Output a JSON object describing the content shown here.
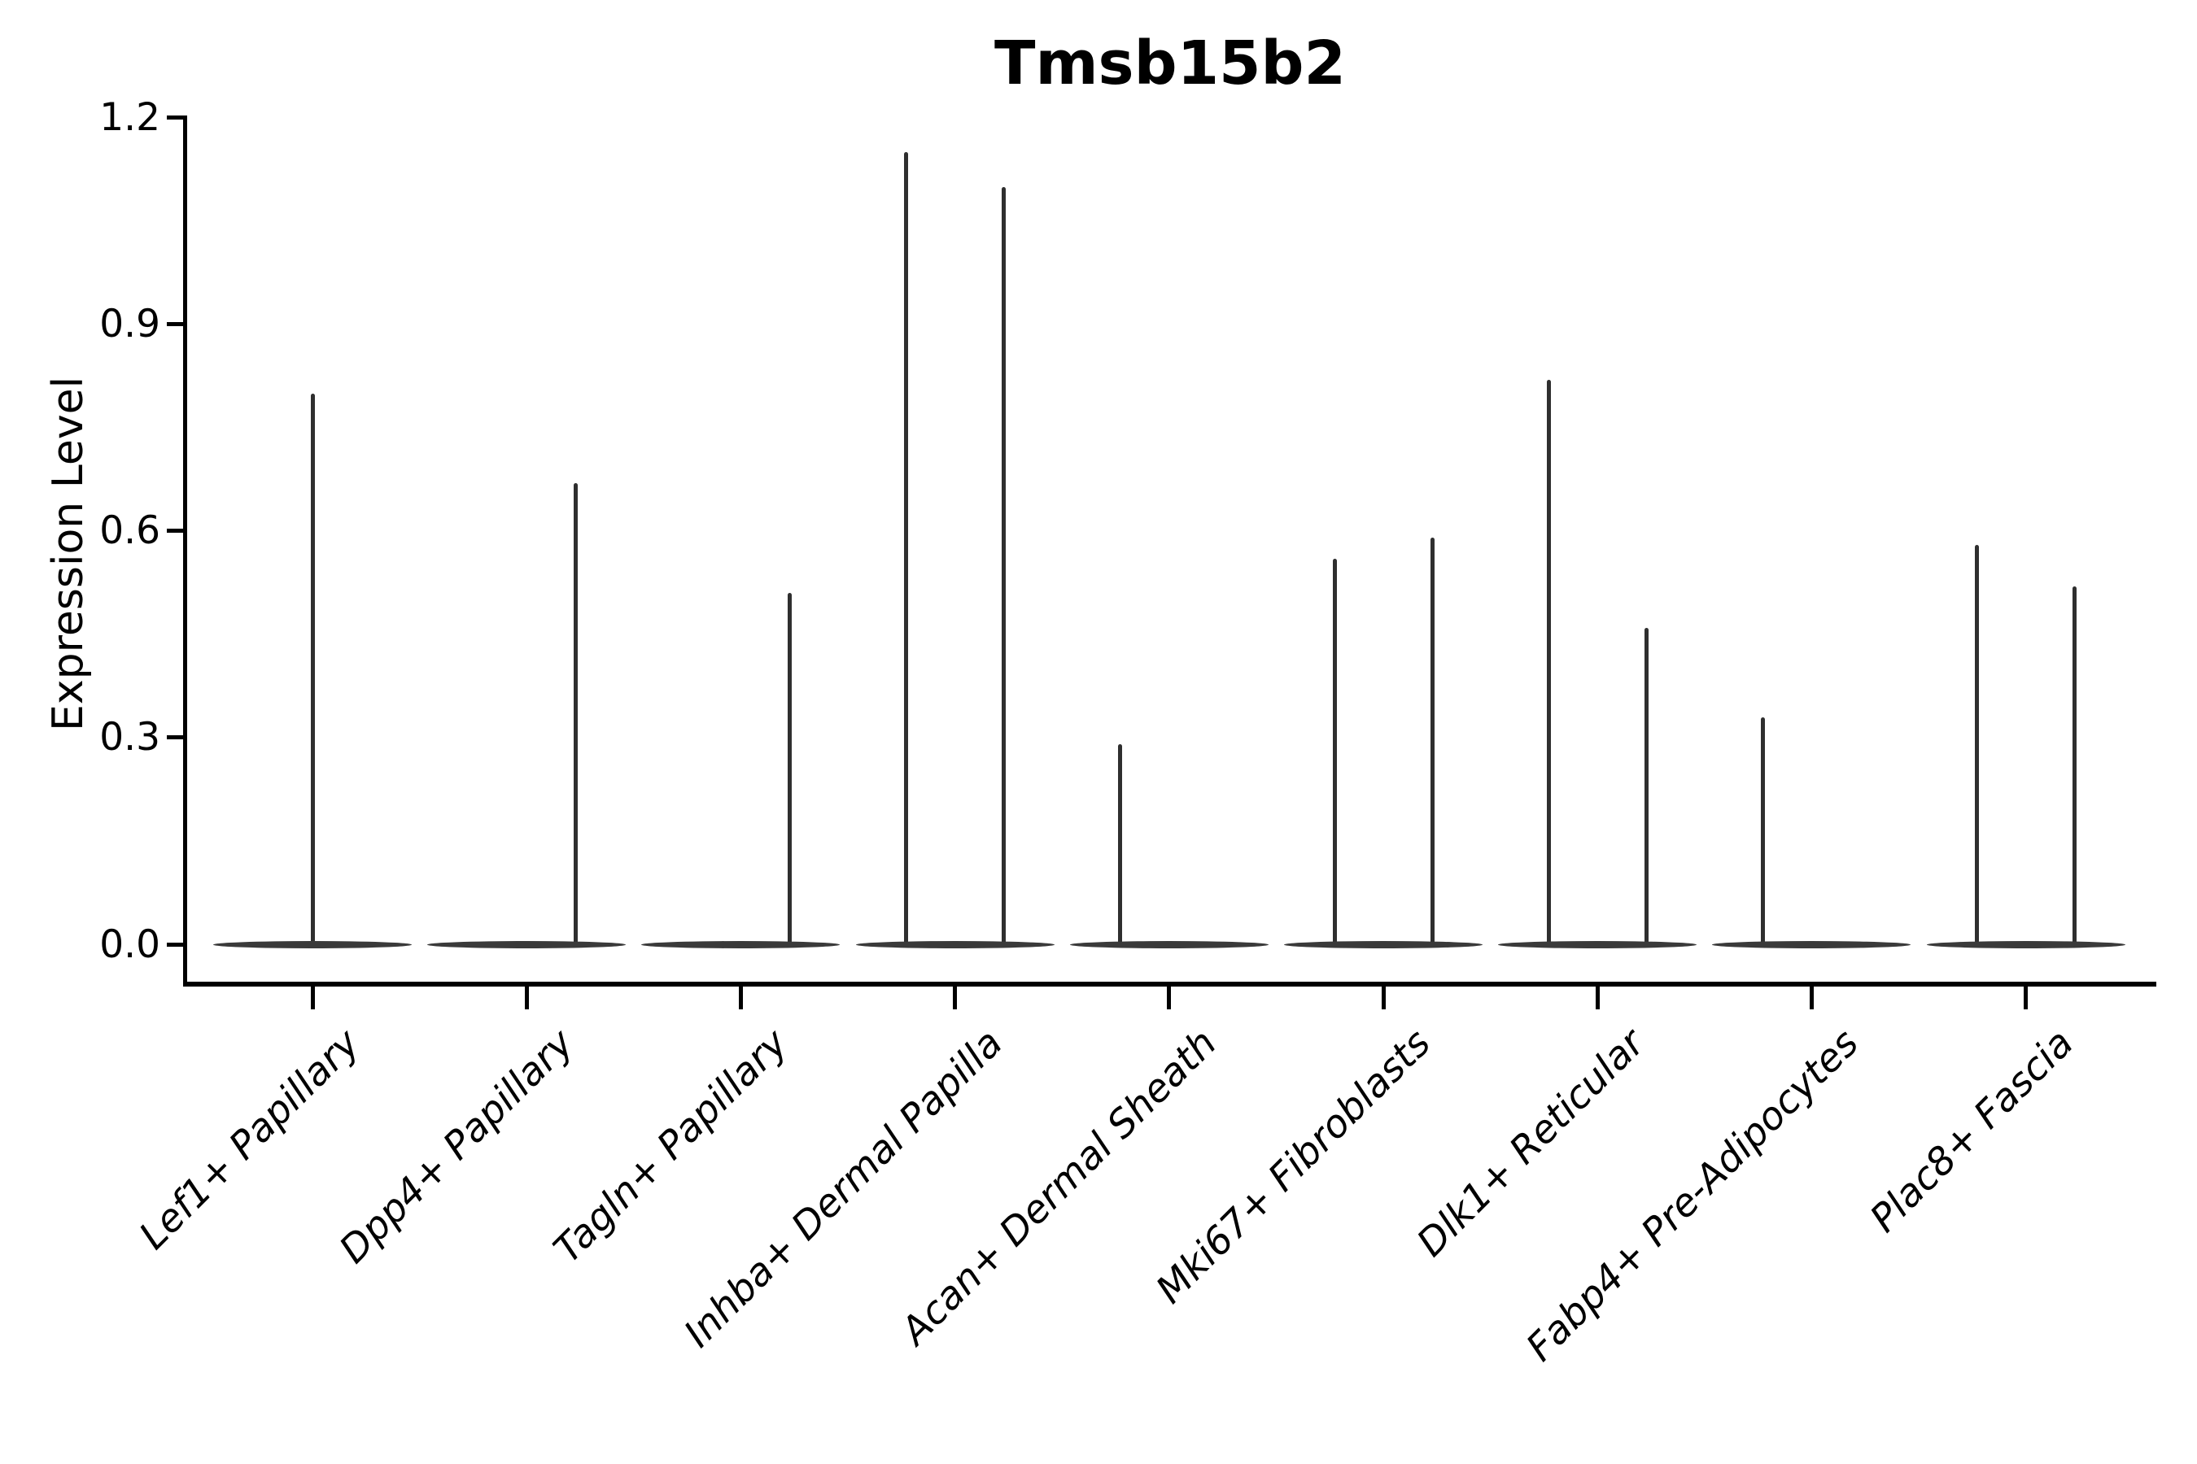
{
  "title": "Tmsb15b2",
  "y_axis": {
    "label": "Expression Level"
  },
  "colors": {
    "violin_fill": "#3a3a3a",
    "needle": "#2f2f2f",
    "axis": "#000000",
    "background": "#ffffff",
    "text": "#000000"
  },
  "chart_data": {
    "type": "violin",
    "title": "Tmsb15b2",
    "xlabel": "",
    "ylabel": "Expression Level",
    "yticks": [
      0.0,
      0.3,
      0.6,
      0.9,
      1.2
    ],
    "ylim": [
      -0.06,
      1.2
    ],
    "grid": false,
    "legend": "none",
    "categories": [
      "Lef1+ Papillary",
      "Dpp4+ Papillary",
      "Tagln+ Papillary",
      "Inhba+ Dermal Papilla",
      "Acan+ Dermal Sheath",
      "Mki67+ Fibroblasts",
      "Dlk1+ Reticular",
      "Fabp4+ Pre-Adipocytes",
      "Plac8+ Fascia"
    ],
    "description": "Needle-shaped violins: wide flat density at expression 0 with thin spikes reaching the maximum expressed value. Several categories show two dodged spikes (left/right sub-violins).",
    "series": [
      {
        "category": "Lef1+ Papillary",
        "violins": [
          {
            "position": "center",
            "max": 0.8
          }
        ]
      },
      {
        "category": "Dpp4+ Papillary",
        "violins": [
          {
            "position": "right",
            "max": 0.67
          }
        ]
      },
      {
        "category": "Tagln+ Papillary",
        "violins": [
          {
            "position": "right",
            "max": 0.51
          }
        ]
      },
      {
        "category": "Inhba+ Dermal Papilla",
        "violins": [
          {
            "position": "left",
            "max": 1.15
          },
          {
            "position": "right",
            "max": 1.1
          }
        ]
      },
      {
        "category": "Acan+ Dermal Sheath",
        "violins": [
          {
            "position": "left",
            "max": 0.29
          }
        ]
      },
      {
        "category": "Mki67+ Fibroblasts",
        "violins": [
          {
            "position": "left",
            "max": 0.56
          },
          {
            "position": "right",
            "max": 0.59
          }
        ]
      },
      {
        "category": "Dlk1+ Reticular",
        "violins": [
          {
            "position": "left",
            "max": 0.82
          },
          {
            "position": "right",
            "max": 0.46
          }
        ]
      },
      {
        "category": "Fabp4+ Pre-Adipocytes",
        "violins": [
          {
            "position": "left",
            "max": 0.33
          }
        ]
      },
      {
        "category": "Plac8+ Fascia",
        "violins": [
          {
            "position": "left",
            "max": 0.58
          },
          {
            "position": "right",
            "max": 0.52
          }
        ]
      }
    ],
    "baseline_value": 0.0
  }
}
